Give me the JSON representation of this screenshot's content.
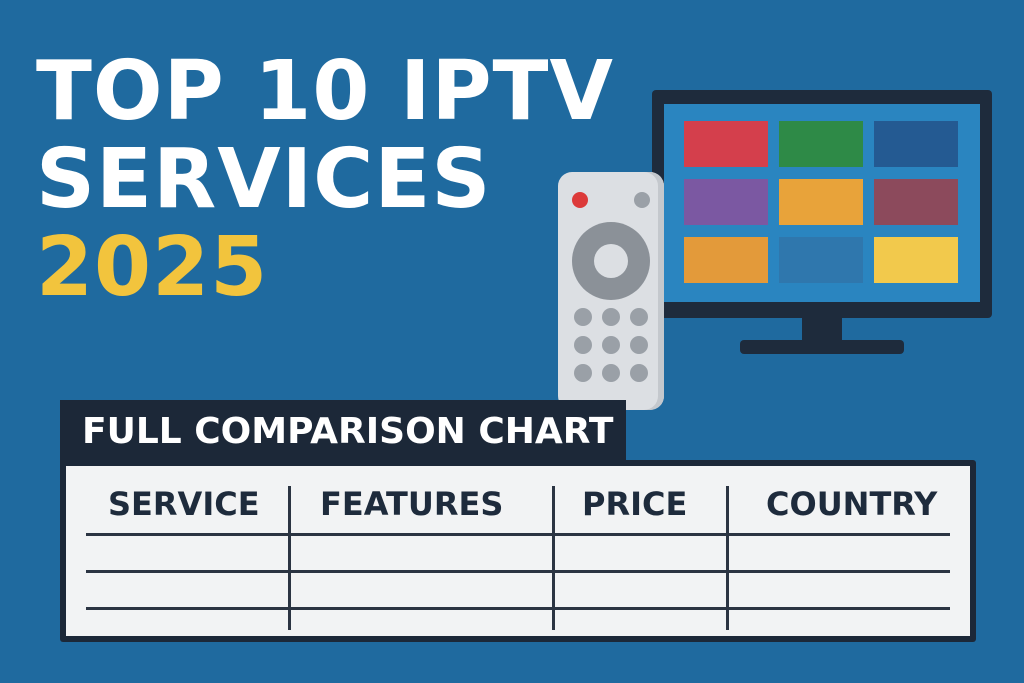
{
  "headline": {
    "line1": "TOP 10 IPTV",
    "line2": "SERVICES",
    "year": "2025"
  },
  "chart_title": "FULL COMPARISON CHART",
  "table": {
    "columns": [
      "SERVICE",
      "FEATURES",
      "PRICE",
      "COUNTRY"
    ],
    "rows": []
  },
  "colors": {
    "background": "#1f6a9f",
    "headline": "#ffffff",
    "year": "#f2c43d",
    "dark": "#1c2838",
    "tv_tiles": [
      "#d43f4c",
      "#2e8a47",
      "#245a92",
      "#7b58a2",
      "#e8a33a",
      "#8c4a5c",
      "#e39a3a",
      "#2f77ad",
      "#f2c94c"
    ]
  },
  "icons": [
    "tv-icon",
    "remote-control-icon"
  ]
}
